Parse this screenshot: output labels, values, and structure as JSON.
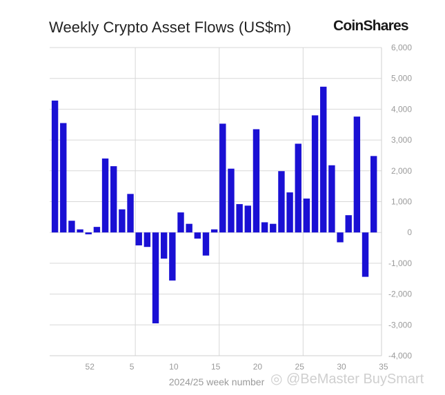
{
  "header": {
    "title": "Weekly Crypto Asset Flows (US$m)",
    "brand": "CoinShares"
  },
  "watermark": "◎ @BeMaster BuySmart",
  "colors": {
    "bar": "#1a10d4",
    "grid": "#d7d7d7",
    "axis_text": "#9a9a9a"
  },
  "chart_data": {
    "type": "bar",
    "title": "Weekly Crypto Asset Flows (US$m)",
    "xlabel": "2024/25 week number",
    "ylabel": "",
    "ylim": [
      -4000,
      6000
    ],
    "yticks": [
      "6,000",
      "5,000",
      "4,000",
      "3,000",
      "2,000",
      "1,000",
      "0",
      "-1,000",
      "-2,000",
      "-3,000",
      "-4,000"
    ],
    "ytick_values": [
      6000,
      5000,
      4000,
      3000,
      2000,
      1000,
      0,
      -1000,
      -2000,
      -3000,
      -4000
    ],
    "grid": true,
    "xtick_labels": [
      "52",
      "5",
      "10",
      "15",
      "20",
      "25",
      "30",
      "35"
    ],
    "xtick_week_index": [
      4,
      9,
      14,
      19,
      24,
      29,
      34,
      39
    ],
    "categories": [
      "48",
      "49",
      "50",
      "51",
      "52",
      "1",
      "2",
      "3",
      "4",
      "5",
      "6",
      "7",
      "8",
      "9",
      "10",
      "11",
      "12",
      "13",
      "14",
      "15",
      "16",
      "17",
      "18",
      "19",
      "20",
      "21",
      "22",
      "23",
      "24",
      "25",
      "26",
      "27",
      "28",
      "29",
      "30",
      "31",
      "32",
      "33",
      "34",
      "35"
    ],
    "values": [
      4280,
      3550,
      380,
      100,
      -60,
      180,
      2400,
      2150,
      750,
      1250,
      -420,
      -470,
      -2950,
      -850,
      -1560,
      650,
      280,
      -200,
      -750,
      100,
      3530,
      2070,
      920,
      870,
      3350,
      330,
      280,
      1990,
      1300,
      2880,
      1100,
      3800,
      4730,
      2180,
      -320,
      560,
      3760,
      -1440,
      2480,
      0
    ]
  }
}
